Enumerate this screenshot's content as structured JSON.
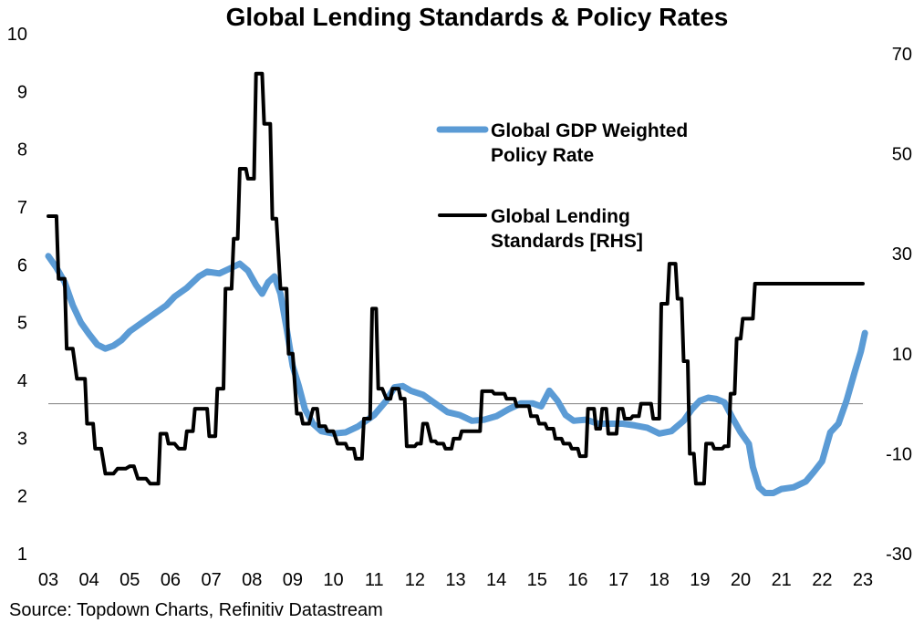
{
  "chart_data": {
    "type": "line",
    "title": "Global Lending Standards & Policy Rates",
    "source": "Source: Topdown Charts, Refinitiv Datastream",
    "x_ticks": [
      "03",
      "04",
      "05",
      "06",
      "07",
      "08",
      "09",
      "10",
      "11",
      "12",
      "13",
      "14",
      "15",
      "16",
      "17",
      "18",
      "19",
      "20",
      "21",
      "22",
      "23"
    ],
    "y_left": {
      "min": 1,
      "max": 10,
      "ticks": [
        "1",
        "2",
        "3",
        "4",
        "5",
        "6",
        "7",
        "8",
        "9",
        "10"
      ]
    },
    "y_right": {
      "min": -30,
      "max": 74,
      "ticks": [
        "-30",
        "-10",
        "10",
        "30",
        "50",
        "70"
      ]
    },
    "zero_line_right": 0,
    "legend": [
      {
        "label_lines": [
          "Global GDP Weighted",
          "Policy Rate"
        ],
        "color": "#5b9bd5"
      },
      {
        "label_lines": [
          "Global Lending",
          "Standards [RHS]"
        ],
        "color": "#000000"
      }
    ],
    "series": [
      {
        "name": "Global GDP Weighted Policy Rate",
        "axis": "left",
        "color": "#5b9bd5",
        "points": [
          [
            2003.0,
            6.15
          ],
          [
            2003.2,
            5.95
          ],
          [
            2003.4,
            5.7
          ],
          [
            2003.6,
            5.3
          ],
          [
            2003.8,
            5.0
          ],
          [
            2004.0,
            4.8
          ],
          [
            2004.2,
            4.62
          ],
          [
            2004.4,
            4.55
          ],
          [
            2004.6,
            4.6
          ],
          [
            2004.8,
            4.7
          ],
          [
            2005.0,
            4.85
          ],
          [
            2005.3,
            5.0
          ],
          [
            2005.6,
            5.15
          ],
          [
            2005.9,
            5.3
          ],
          [
            2006.1,
            5.45
          ],
          [
            2006.4,
            5.6
          ],
          [
            2006.7,
            5.8
          ],
          [
            2006.9,
            5.88
          ],
          [
            2007.2,
            5.85
          ],
          [
            2007.5,
            5.95
          ],
          [
            2007.7,
            6.02
          ],
          [
            2007.9,
            5.9
          ],
          [
            2008.1,
            5.65
          ],
          [
            2008.25,
            5.5
          ],
          [
            2008.4,
            5.7
          ],
          [
            2008.55,
            5.8
          ],
          [
            2008.7,
            5.5
          ],
          [
            2008.85,
            4.9
          ],
          [
            2009.0,
            4.25
          ],
          [
            2009.15,
            3.9
          ],
          [
            2009.3,
            3.5
          ],
          [
            2009.5,
            3.25
          ],
          [
            2009.7,
            3.12
          ],
          [
            2010.0,
            3.08
          ],
          [
            2010.3,
            3.1
          ],
          [
            2010.6,
            3.2
          ],
          [
            2011.0,
            3.4
          ],
          [
            2011.3,
            3.65
          ],
          [
            2011.5,
            3.88
          ],
          [
            2011.7,
            3.9
          ],
          [
            2011.9,
            3.82
          ],
          [
            2012.2,
            3.75
          ],
          [
            2012.5,
            3.6
          ],
          [
            2012.8,
            3.45
          ],
          [
            2013.1,
            3.4
          ],
          [
            2013.4,
            3.3
          ],
          [
            2013.7,
            3.32
          ],
          [
            2014.0,
            3.38
          ],
          [
            2014.3,
            3.5
          ],
          [
            2014.6,
            3.6
          ],
          [
            2014.9,
            3.6
          ],
          [
            2015.1,
            3.55
          ],
          [
            2015.3,
            3.82
          ],
          [
            2015.5,
            3.65
          ],
          [
            2015.7,
            3.4
          ],
          [
            2015.9,
            3.3
          ],
          [
            2016.2,
            3.32
          ],
          [
            2016.5,
            3.25
          ],
          [
            2016.8,
            3.25
          ],
          [
            2017.1,
            3.25
          ],
          [
            2017.4,
            3.22
          ],
          [
            2017.7,
            3.18
          ],
          [
            2018.0,
            3.08
          ],
          [
            2018.3,
            3.12
          ],
          [
            2018.6,
            3.3
          ],
          [
            2018.8,
            3.5
          ],
          [
            2019.0,
            3.65
          ],
          [
            2019.2,
            3.7
          ],
          [
            2019.4,
            3.68
          ],
          [
            2019.6,
            3.62
          ],
          [
            2019.8,
            3.35
          ],
          [
            2020.0,
            3.1
          ],
          [
            2020.2,
            2.9
          ],
          [
            2020.3,
            2.5
          ],
          [
            2020.45,
            2.15
          ],
          [
            2020.6,
            2.05
          ],
          [
            2020.8,
            2.05
          ],
          [
            2021.0,
            2.12
          ],
          [
            2021.3,
            2.15
          ],
          [
            2021.6,
            2.25
          ],
          [
            2021.8,
            2.42
          ],
          [
            2022.0,
            2.6
          ],
          [
            2022.2,
            3.1
          ],
          [
            2022.4,
            3.25
          ],
          [
            2022.6,
            3.65
          ],
          [
            2022.8,
            4.15
          ],
          [
            2022.95,
            4.5
          ],
          [
            2023.05,
            4.82
          ]
        ]
      },
      {
        "name": "Global Lending Standards [RHS]",
        "axis": "right",
        "color": "#000000",
        "points": [
          [
            2003.0,
            37.5
          ],
          [
            2003.2,
            37.5
          ],
          [
            2003.25,
            25
          ],
          [
            2003.4,
            25
          ],
          [
            2003.45,
            11
          ],
          [
            2003.6,
            11
          ],
          [
            2003.7,
            5
          ],
          [
            2003.8,
            5
          ],
          [
            2003.9,
            5
          ],
          [
            2003.95,
            -4
          ],
          [
            2004.1,
            -4
          ],
          [
            2004.15,
            -9
          ],
          [
            2004.3,
            -9
          ],
          [
            2004.4,
            -14
          ],
          [
            2004.6,
            -14
          ],
          [
            2004.7,
            -13
          ],
          [
            2004.9,
            -13
          ],
          [
            2005.0,
            -12.5
          ],
          [
            2005.1,
            -12.5
          ],
          [
            2005.2,
            -15
          ],
          [
            2005.4,
            -15
          ],
          [
            2005.5,
            -16
          ],
          [
            2005.7,
            -16
          ],
          [
            2005.75,
            -6
          ],
          [
            2005.9,
            -6
          ],
          [
            2005.95,
            -8
          ],
          [
            2006.1,
            -8
          ],
          [
            2006.2,
            -9
          ],
          [
            2006.35,
            -9
          ],
          [
            2006.4,
            -5.5
          ],
          [
            2006.55,
            -5.5
          ],
          [
            2006.6,
            -1
          ],
          [
            2006.9,
            -1
          ],
          [
            2006.95,
            -6.5
          ],
          [
            2007.1,
            -6.5
          ],
          [
            2007.15,
            3
          ],
          [
            2007.3,
            3
          ],
          [
            2007.35,
            23
          ],
          [
            2007.5,
            23
          ],
          [
            2007.55,
            33
          ],
          [
            2007.65,
            33
          ],
          [
            2007.7,
            47
          ],
          [
            2007.85,
            47
          ],
          [
            2007.9,
            45
          ],
          [
            2008.05,
            45
          ],
          [
            2008.1,
            66
          ],
          [
            2008.25,
            66
          ],
          [
            2008.3,
            56
          ],
          [
            2008.45,
            56
          ],
          [
            2008.5,
            37
          ],
          [
            2008.6,
            37
          ],
          [
            2008.7,
            23
          ],
          [
            2008.85,
            23
          ],
          [
            2008.9,
            10
          ],
          [
            2009.0,
            10
          ],
          [
            2009.1,
            -2
          ],
          [
            2009.2,
            -2
          ],
          [
            2009.25,
            -4
          ],
          [
            2009.4,
            -4
          ],
          [
            2009.5,
            -1
          ],
          [
            2009.6,
            -1
          ],
          [
            2009.65,
            -4.5
          ],
          [
            2009.8,
            -4.5
          ],
          [
            2009.85,
            -5.5
          ],
          [
            2010.0,
            -5.5
          ],
          [
            2010.1,
            -8
          ],
          [
            2010.3,
            -8
          ],
          [
            2010.35,
            -9
          ],
          [
            2010.5,
            -9
          ],
          [
            2010.55,
            -11
          ],
          [
            2010.7,
            -11
          ],
          [
            2010.75,
            -3
          ],
          [
            2010.9,
            -3
          ],
          [
            2010.95,
            19
          ],
          [
            2011.05,
            19
          ],
          [
            2011.1,
            3
          ],
          [
            2011.2,
            3
          ],
          [
            2011.3,
            1
          ],
          [
            2011.4,
            1
          ],
          [
            2011.45,
            3
          ],
          [
            2011.6,
            3
          ],
          [
            2011.65,
            1
          ],
          [
            2011.75,
            1
          ],
          [
            2011.8,
            -8.5
          ],
          [
            2012.0,
            -8.5
          ],
          [
            2012.05,
            -8
          ],
          [
            2012.15,
            -8
          ],
          [
            2012.2,
            -4
          ],
          [
            2012.3,
            -4
          ],
          [
            2012.4,
            -7.5
          ],
          [
            2012.5,
            -7.5
          ],
          [
            2012.55,
            -8
          ],
          [
            2012.7,
            -8
          ],
          [
            2012.75,
            -9
          ],
          [
            2012.9,
            -9
          ],
          [
            2012.95,
            -7
          ],
          [
            2013.1,
            -7
          ],
          [
            2013.15,
            -5.5
          ],
          [
            2013.3,
            -5.5
          ],
          [
            2013.4,
            -5.5
          ],
          [
            2013.6,
            -5.5
          ],
          [
            2013.65,
            2.5
          ],
          [
            2013.9,
            2.5
          ],
          [
            2013.95,
            2
          ],
          [
            2014.2,
            2
          ],
          [
            2014.25,
            1
          ],
          [
            2014.45,
            1
          ],
          [
            2014.5,
            -0.5
          ],
          [
            2014.8,
            -0.5
          ],
          [
            2014.85,
            -2.5
          ],
          [
            2015.0,
            -2.5
          ],
          [
            2015.05,
            -4
          ],
          [
            2015.2,
            -4
          ],
          [
            2015.25,
            -5
          ],
          [
            2015.4,
            -5
          ],
          [
            2015.45,
            -7
          ],
          [
            2015.6,
            -7
          ],
          [
            2015.65,
            -8
          ],
          [
            2015.8,
            -8
          ],
          [
            2015.85,
            -9
          ],
          [
            2016.0,
            -9
          ],
          [
            2016.05,
            -10.5
          ],
          [
            2016.2,
            -10.5
          ],
          [
            2016.25,
            -1
          ],
          [
            2016.4,
            -1
          ],
          [
            2016.45,
            -5
          ],
          [
            2016.55,
            -5
          ],
          [
            2016.6,
            -1
          ],
          [
            2016.7,
            -1
          ],
          [
            2016.75,
            -6
          ],
          [
            2016.95,
            -6
          ],
          [
            2017.0,
            -1
          ],
          [
            2017.1,
            -1
          ],
          [
            2017.15,
            -3
          ],
          [
            2017.3,
            -3
          ],
          [
            2017.35,
            -2.5
          ],
          [
            2017.5,
            -2.5
          ],
          [
            2017.55,
            0
          ],
          [
            2017.65,
            0
          ],
          [
            2017.7,
            0
          ],
          [
            2017.8,
            0
          ],
          [
            2017.85,
            -3
          ],
          [
            2018.0,
            -3
          ],
          [
            2018.05,
            20
          ],
          [
            2018.2,
            20
          ],
          [
            2018.25,
            28
          ],
          [
            2018.4,
            28
          ],
          [
            2018.45,
            21
          ],
          [
            2018.55,
            21
          ],
          [
            2018.6,
            8.5
          ],
          [
            2018.7,
            8.5
          ],
          [
            2018.75,
            -10
          ],
          [
            2018.85,
            -10
          ],
          [
            2018.9,
            -16
          ],
          [
            2019.1,
            -16
          ],
          [
            2019.15,
            -8
          ],
          [
            2019.3,
            -8
          ],
          [
            2019.35,
            -9
          ],
          [
            2019.55,
            -9
          ],
          [
            2019.6,
            -8.5
          ],
          [
            2019.7,
            -8.5
          ],
          [
            2019.75,
            2
          ],
          [
            2019.85,
            2
          ],
          [
            2019.9,
            13
          ],
          [
            2020.0,
            13
          ],
          [
            2020.05,
            17
          ],
          [
            2020.15,
            17
          ],
          [
            2020.2,
            17
          ],
          [
            2020.3,
            17
          ],
          [
            2020.35,
            24
          ],
          [
            2020.5,
            24
          ],
          [
            2020.55,
            24
          ],
          [
            2020.7,
            24
          ],
          [
            2020.75,
            24
          ],
          [
            2020.9,
            24
          ],
          [
            2020.95,
            24
          ],
          [
            2021.05,
            24
          ],
          [
            2021.1,
            24
          ],
          [
            2021.2,
            24
          ],
          [
            2021.25,
            24
          ],
          [
            2021.35,
            24
          ],
          [
            2021.4,
            24
          ],
          [
            2021.5,
            24
          ],
          [
            2021.55,
            24
          ],
          [
            2021.65,
            24
          ],
          [
            2021.7,
            24
          ],
          [
            2021.8,
            24
          ],
          [
            2021.85,
            24
          ],
          [
            2021.95,
            24
          ],
          [
            2022.0,
            24
          ],
          [
            2022.1,
            24
          ],
          [
            2022.15,
            24
          ],
          [
            2022.25,
            24
          ],
          [
            2022.3,
            24
          ],
          [
            2022.4,
            24
          ],
          [
            2022.45,
            24
          ],
          [
            2022.55,
            24
          ],
          [
            2022.6,
            24
          ],
          [
            2022.7,
            24
          ],
          [
            2022.75,
            24
          ],
          [
            2022.85,
            24
          ],
          [
            2022.9,
            24
          ],
          [
            2023.0,
            24
          ]
        ]
      }
    ]
  }
}
